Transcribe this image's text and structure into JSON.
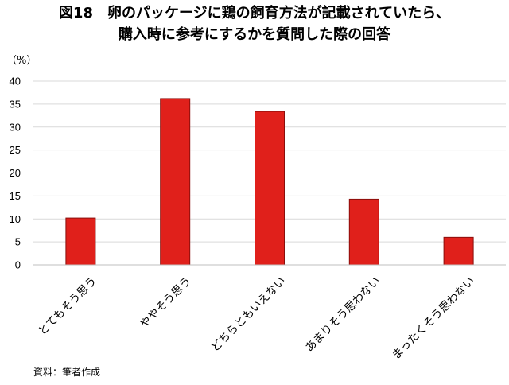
{
  "chart_data": {
    "type": "bar",
    "title_lines": [
      "図18　卵のパッケージに鶏の飼育方法が記載されていたら、",
      "購入時に参考にするかを質問した際の回答"
    ],
    "ylabel": "（%）",
    "categories": [
      "とてもそう思う",
      "ややそう思う",
      "どちらともいえない",
      "あまりそう思わない",
      "まったくそう思わない"
    ],
    "values": [
      10.2,
      36.2,
      33.4,
      14.3,
      6.0
    ],
    "ylim": [
      0,
      40
    ],
    "yticks": [
      0,
      5,
      10,
      15,
      20,
      25,
      30,
      35,
      40
    ],
    "grid": true,
    "bar_color": "#e0201b",
    "bar_edge_color": "#8a0e0b",
    "grid_color": "#d9d9d9",
    "source": "資料：筆者作成"
  }
}
